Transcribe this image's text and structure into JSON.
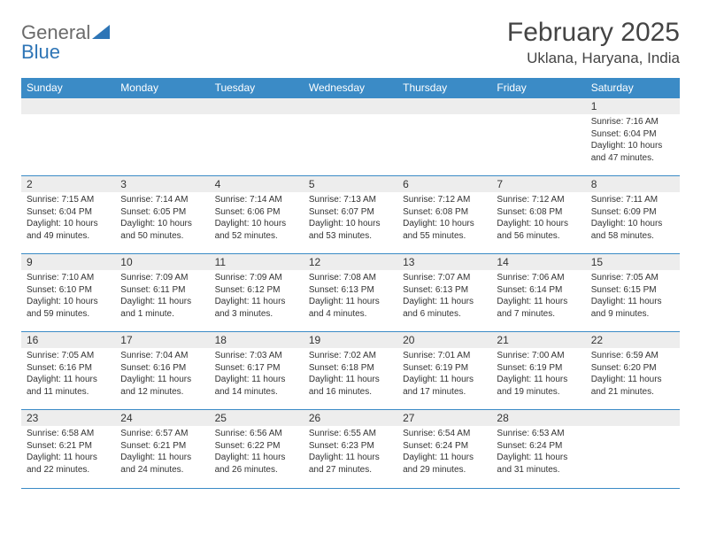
{
  "brand": {
    "text1": "General",
    "text2": "Blue"
  },
  "title": "February 2025",
  "location": "Uklana, Haryana, India",
  "header_bg": "#3b8bc6",
  "header_text_color": "#ffffff",
  "daynum_bg": "#ededed",
  "border_color": "#3b8bc6",
  "day_headers": [
    "Sunday",
    "Monday",
    "Tuesday",
    "Wednesday",
    "Thursday",
    "Friday",
    "Saturday"
  ],
  "weeks": [
    [
      null,
      null,
      null,
      null,
      null,
      null,
      {
        "n": "1",
        "sr": "7:16 AM",
        "ss": "6:04 PM",
        "dl": "10 hours and 47 minutes."
      }
    ],
    [
      {
        "n": "2",
        "sr": "7:15 AM",
        "ss": "6:04 PM",
        "dl": "10 hours and 49 minutes."
      },
      {
        "n": "3",
        "sr": "7:14 AM",
        "ss": "6:05 PM",
        "dl": "10 hours and 50 minutes."
      },
      {
        "n": "4",
        "sr": "7:14 AM",
        "ss": "6:06 PM",
        "dl": "10 hours and 52 minutes."
      },
      {
        "n": "5",
        "sr": "7:13 AM",
        "ss": "6:07 PM",
        "dl": "10 hours and 53 minutes."
      },
      {
        "n": "6",
        "sr": "7:12 AM",
        "ss": "6:08 PM",
        "dl": "10 hours and 55 minutes."
      },
      {
        "n": "7",
        "sr": "7:12 AM",
        "ss": "6:08 PM",
        "dl": "10 hours and 56 minutes."
      },
      {
        "n": "8",
        "sr": "7:11 AM",
        "ss": "6:09 PM",
        "dl": "10 hours and 58 minutes."
      }
    ],
    [
      {
        "n": "9",
        "sr": "7:10 AM",
        "ss": "6:10 PM",
        "dl": "10 hours and 59 minutes."
      },
      {
        "n": "10",
        "sr": "7:09 AM",
        "ss": "6:11 PM",
        "dl": "11 hours and 1 minute."
      },
      {
        "n": "11",
        "sr": "7:09 AM",
        "ss": "6:12 PM",
        "dl": "11 hours and 3 minutes."
      },
      {
        "n": "12",
        "sr": "7:08 AM",
        "ss": "6:13 PM",
        "dl": "11 hours and 4 minutes."
      },
      {
        "n": "13",
        "sr": "7:07 AM",
        "ss": "6:13 PM",
        "dl": "11 hours and 6 minutes."
      },
      {
        "n": "14",
        "sr": "7:06 AM",
        "ss": "6:14 PM",
        "dl": "11 hours and 7 minutes."
      },
      {
        "n": "15",
        "sr": "7:05 AM",
        "ss": "6:15 PM",
        "dl": "11 hours and 9 minutes."
      }
    ],
    [
      {
        "n": "16",
        "sr": "7:05 AM",
        "ss": "6:16 PM",
        "dl": "11 hours and 11 minutes."
      },
      {
        "n": "17",
        "sr": "7:04 AM",
        "ss": "6:16 PM",
        "dl": "11 hours and 12 minutes."
      },
      {
        "n": "18",
        "sr": "7:03 AM",
        "ss": "6:17 PM",
        "dl": "11 hours and 14 minutes."
      },
      {
        "n": "19",
        "sr": "7:02 AM",
        "ss": "6:18 PM",
        "dl": "11 hours and 16 minutes."
      },
      {
        "n": "20",
        "sr": "7:01 AM",
        "ss": "6:19 PM",
        "dl": "11 hours and 17 minutes."
      },
      {
        "n": "21",
        "sr": "7:00 AM",
        "ss": "6:19 PM",
        "dl": "11 hours and 19 minutes."
      },
      {
        "n": "22",
        "sr": "6:59 AM",
        "ss": "6:20 PM",
        "dl": "11 hours and 21 minutes."
      }
    ],
    [
      {
        "n": "23",
        "sr": "6:58 AM",
        "ss": "6:21 PM",
        "dl": "11 hours and 22 minutes."
      },
      {
        "n": "24",
        "sr": "6:57 AM",
        "ss": "6:21 PM",
        "dl": "11 hours and 24 minutes."
      },
      {
        "n": "25",
        "sr": "6:56 AM",
        "ss": "6:22 PM",
        "dl": "11 hours and 26 minutes."
      },
      {
        "n": "26",
        "sr": "6:55 AM",
        "ss": "6:23 PM",
        "dl": "11 hours and 27 minutes."
      },
      {
        "n": "27",
        "sr": "6:54 AM",
        "ss": "6:24 PM",
        "dl": "11 hours and 29 minutes."
      },
      {
        "n": "28",
        "sr": "6:53 AM",
        "ss": "6:24 PM",
        "dl": "11 hours and 31 minutes."
      },
      null
    ]
  ],
  "labels": {
    "sunrise": "Sunrise:",
    "sunset": "Sunset:",
    "daylight": "Daylight:"
  }
}
